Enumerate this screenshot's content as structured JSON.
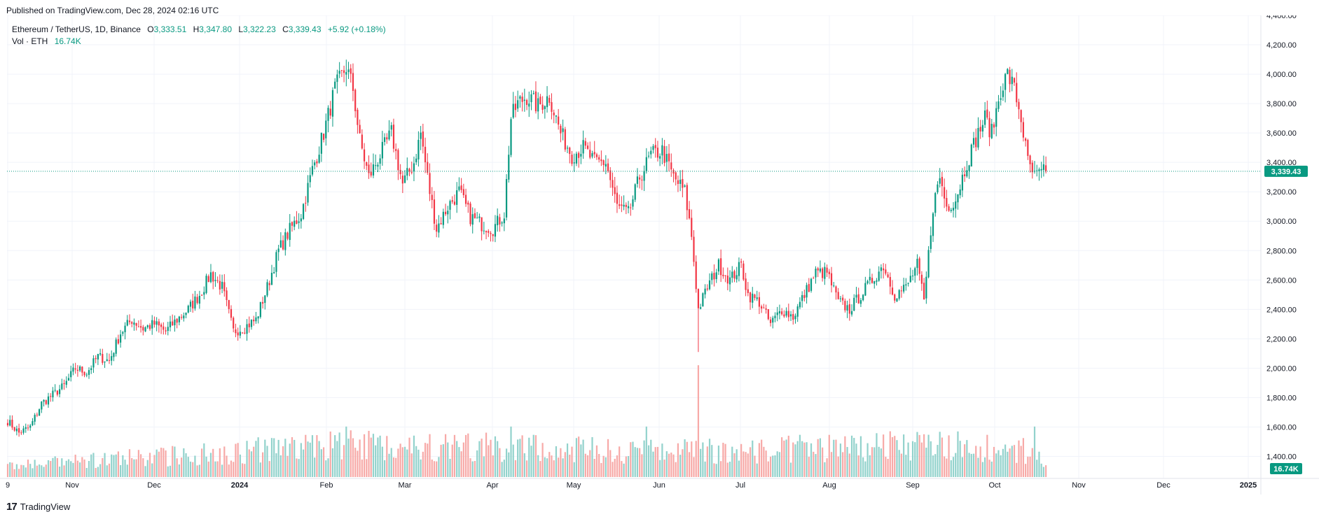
{
  "header": {
    "published": "Published on TradingView.com, Dec 28, 2024 02:16 UTC"
  },
  "legend": {
    "symbol": "Ethereum / TetherUS, 1D, Binance",
    "open_label": "O",
    "open": "3,333.51",
    "high_label": "H",
    "high": "3,347.80",
    "low_label": "L",
    "low": "3,322.23",
    "close_label": "C",
    "close": "3,339.43",
    "change": "+5.92 (+0.18%)",
    "volume_label": "Vol · ETH",
    "volume": "16.74K"
  },
  "price_badge": "3,339.43",
  "volume_badge": "16.74K",
  "footer": {
    "brand": "TradingView",
    "logo": "17"
  },
  "colors": {
    "up": "#089981",
    "down": "#f23645",
    "up_vol": "#92d2cc",
    "down_vol": "#f7a9a7",
    "grid": "#f0f3fa",
    "axis_text": "#131722"
  },
  "chart_data": {
    "type": "candlestick",
    "title": "Ethereum / TetherUS, 1D, Binance",
    "price_axis": {
      "ticks": [
        "1,400.00",
        "1,600.00",
        "1,800.00",
        "2,000.00",
        "2,200.00",
        "2,400.00",
        "2,600.00",
        "2,800.00",
        "3,000.00",
        "3,200.00",
        "3,400.00",
        "3,600.00",
        "3,800.00",
        "4,000.00",
        "4,200.00",
        "4,400.00"
      ],
      "ylim": [
        1250,
        4400
      ]
    },
    "time_axis": {
      "labels": [
        "9",
        "Nov",
        "Dec",
        "2024",
        "Feb",
        "Mar",
        "Apr",
        "May",
        "Jun",
        "Jul",
        "Aug",
        "Sep",
        "Oct",
        "Nov",
        "Dec",
        "2025"
      ]
    },
    "last_close": 3339.43,
    "anchors": [
      [
        0,
        1640
      ],
      [
        5,
        1560
      ],
      [
        10,
        1600
      ],
      [
        15,
        1760
      ],
      [
        20,
        1820
      ],
      [
        25,
        1880
      ],
      [
        30,
        2000
      ],
      [
        35,
        1970
      ],
      [
        40,
        2080
      ],
      [
        45,
        2050
      ],
      [
        50,
        2240
      ],
      [
        55,
        2330
      ],
      [
        60,
        2270
      ],
      [
        65,
        2300
      ],
      [
        70,
        2250
      ],
      [
        75,
        2330
      ],
      [
        80,
        2400
      ],
      [
        85,
        2500
      ],
      [
        90,
        2640
      ],
      [
        95,
        2550
      ],
      [
        100,
        2250
      ],
      [
        105,
        2280
      ],
      [
        110,
        2330
      ],
      [
        115,
        2550
      ],
      [
        120,
        2800
      ],
      [
        125,
        2940
      ],
      [
        130,
        3050
      ],
      [
        135,
        3350
      ],
      [
        140,
        3600
      ],
      [
        145,
        3900
      ],
      [
        150,
        4050
      ],
      [
        153,
        3900
      ],
      [
        156,
        3550
      ],
      [
        160,
        3300
      ],
      [
        165,
        3450
      ],
      [
        170,
        3600
      ],
      [
        175,
        3250
      ],
      [
        180,
        3400
      ],
      [
        183,
        3600
      ],
      [
        187,
        3200
      ],
      [
        190,
        2950
      ],
      [
        195,
        3100
      ],
      [
        200,
        3200
      ],
      [
        205,
        3030
      ],
      [
        210,
        2980
      ],
      [
        215,
        2950
      ],
      [
        220,
        3050
      ],
      [
        223,
        3700
      ],
      [
        226,
        3800
      ],
      [
        230,
        3850
      ],
      [
        235,
        3780
      ],
      [
        240,
        3850
      ],
      [
        245,
        3600
      ],
      [
        250,
        3450
      ],
      [
        255,
        3500
      ],
      [
        260,
        3400
      ],
      [
        265,
        3400
      ],
      [
        270,
        3100
      ],
      [
        275,
        3050
      ],
      [
        280,
        3300
      ],
      [
        285,
        3450
      ],
      [
        290,
        3480
      ],
      [
        295,
        3300
      ],
      [
        300,
        3200
      ],
      [
        303,
        2900
      ],
      [
        306,
        2400
      ],
      [
        310,
        2550
      ],
      [
        315,
        2700
      ],
      [
        320,
        2600
      ],
      [
        325,
        2700
      ],
      [
        328,
        2500
      ],
      [
        333,
        2450
      ],
      [
        338,
        2300
      ],
      [
        343,
        2400
      ],
      [
        348,
        2350
      ],
      [
        353,
        2500
      ],
      [
        358,
        2650
      ],
      [
        363,
        2650
      ],
      [
        368,
        2450
      ],
      [
        373,
        2400
      ],
      [
        378,
        2500
      ],
      [
        383,
        2600
      ],
      [
        388,
        2700
      ],
      [
        393,
        2500
      ],
      [
        398,
        2550
      ],
      [
        403,
        2700
      ],
      [
        406,
        2450
      ],
      [
        410,
        3100
      ],
      [
        413,
        3300
      ],
      [
        416,
        3100
      ],
      [
        420,
        3150
      ],
      [
        425,
        3400
      ],
      [
        430,
        3600
      ],
      [
        433,
        3700
      ],
      [
        436,
        3600
      ],
      [
        440,
        3900
      ],
      [
        443,
        4000
      ],
      [
        446,
        3900
      ],
      [
        449,
        3700
      ],
      [
        452,
        3400
      ],
      [
        455,
        3300
      ],
      [
        460,
        3340
      ]
    ],
    "volume_anchors": [
      [
        0,
        0.15
      ],
      [
        150,
        0.45
      ],
      [
        306,
        0.35
      ],
      [
        410,
        0.45
      ],
      [
        455,
        0.35
      ],
      [
        460,
        0.12
      ]
    ]
  }
}
